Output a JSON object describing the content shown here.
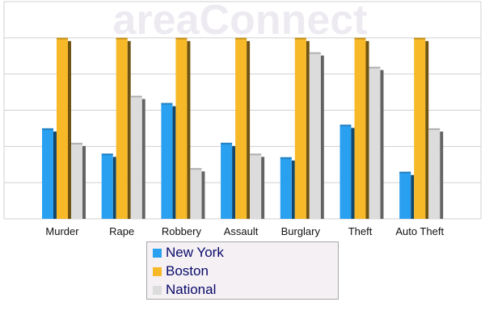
{
  "watermark": "areaConnect",
  "chart_data": {
    "type": "bar",
    "categories": [
      "Murder",
      "Rape",
      "Robbery",
      "Assault",
      "Burglary",
      "Theft",
      "Auto Theft"
    ],
    "series": [
      {
        "name": "New York",
        "color": "#2aa0f0",
        "values": [
          2.5,
          1.8,
          3.2,
          2.1,
          1.7,
          2.6,
          1.3
        ]
      },
      {
        "name": "Boston",
        "color": "#f7b928",
        "values": [
          5.0,
          5.0,
          5.0,
          5.0,
          5.0,
          5.0,
          5.0
        ]
      },
      {
        "name": "National",
        "color": "#dcdcdc",
        "values": [
          2.1,
          3.4,
          1.4,
          1.8,
          4.6,
          4.2,
          2.5
        ]
      }
    ],
    "ylim": [
      0,
      6
    ],
    "grid": true,
    "legend_position": "bottom"
  },
  "legend": {
    "items": [
      {
        "label": "New York",
        "color": "#2aa0f0"
      },
      {
        "label": "Boston",
        "color": "#f7b928"
      },
      {
        "label": "National",
        "color": "#dcdcdc"
      }
    ]
  }
}
